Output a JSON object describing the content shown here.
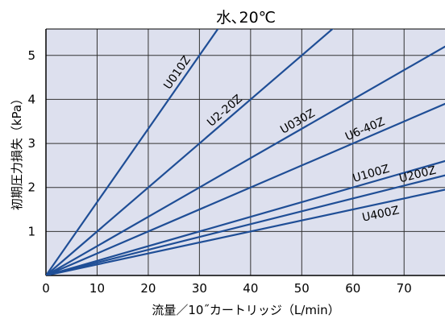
{
  "chart_data": {
    "type": "line",
    "title": "水､20℃",
    "xlabel": "流量／10˝カートリッジ（L/min）",
    "ylabel": "初期圧力損失（kPa）",
    "xlim": [
      0,
      78
    ],
    "ylim": [
      0,
      5.6
    ],
    "x_ticks": [
      0,
      10,
      20,
      30,
      40,
      50,
      60,
      70
    ],
    "y_ticks": [
      1,
      2,
      3,
      4,
      5
    ],
    "grid": true,
    "background_color": "#dde0ee",
    "grid_color": "#333333",
    "line_color": "#1f4e96",
    "series": [
      {
        "name": "U010Z",
        "x": [
          0,
          30
        ],
        "y": [
          0,
          5.0
        ]
      },
      {
        "name": "U2-20Z",
        "x": [
          0,
          40
        ],
        "y": [
          0,
          4.0
        ]
      },
      {
        "name": "U030Z",
        "x": [
          0,
          60
        ],
        "y": [
          0,
          4.0
        ]
      },
      {
        "name": "U6-40Z",
        "x": [
          0,
          60
        ],
        "y": [
          0,
          3.0
        ]
      },
      {
        "name": "U100Z",
        "x": [
          0,
          60
        ],
        "y": [
          0,
          2.0
        ]
      },
      {
        "name": "U200Z",
        "x": [
          0,
          60
        ],
        "y": [
          0,
          1.75
        ]
      },
      {
        "name": "U400Z",
        "x": [
          0,
          60
        ],
        "y": [
          0,
          1.5
        ]
      }
    ]
  }
}
